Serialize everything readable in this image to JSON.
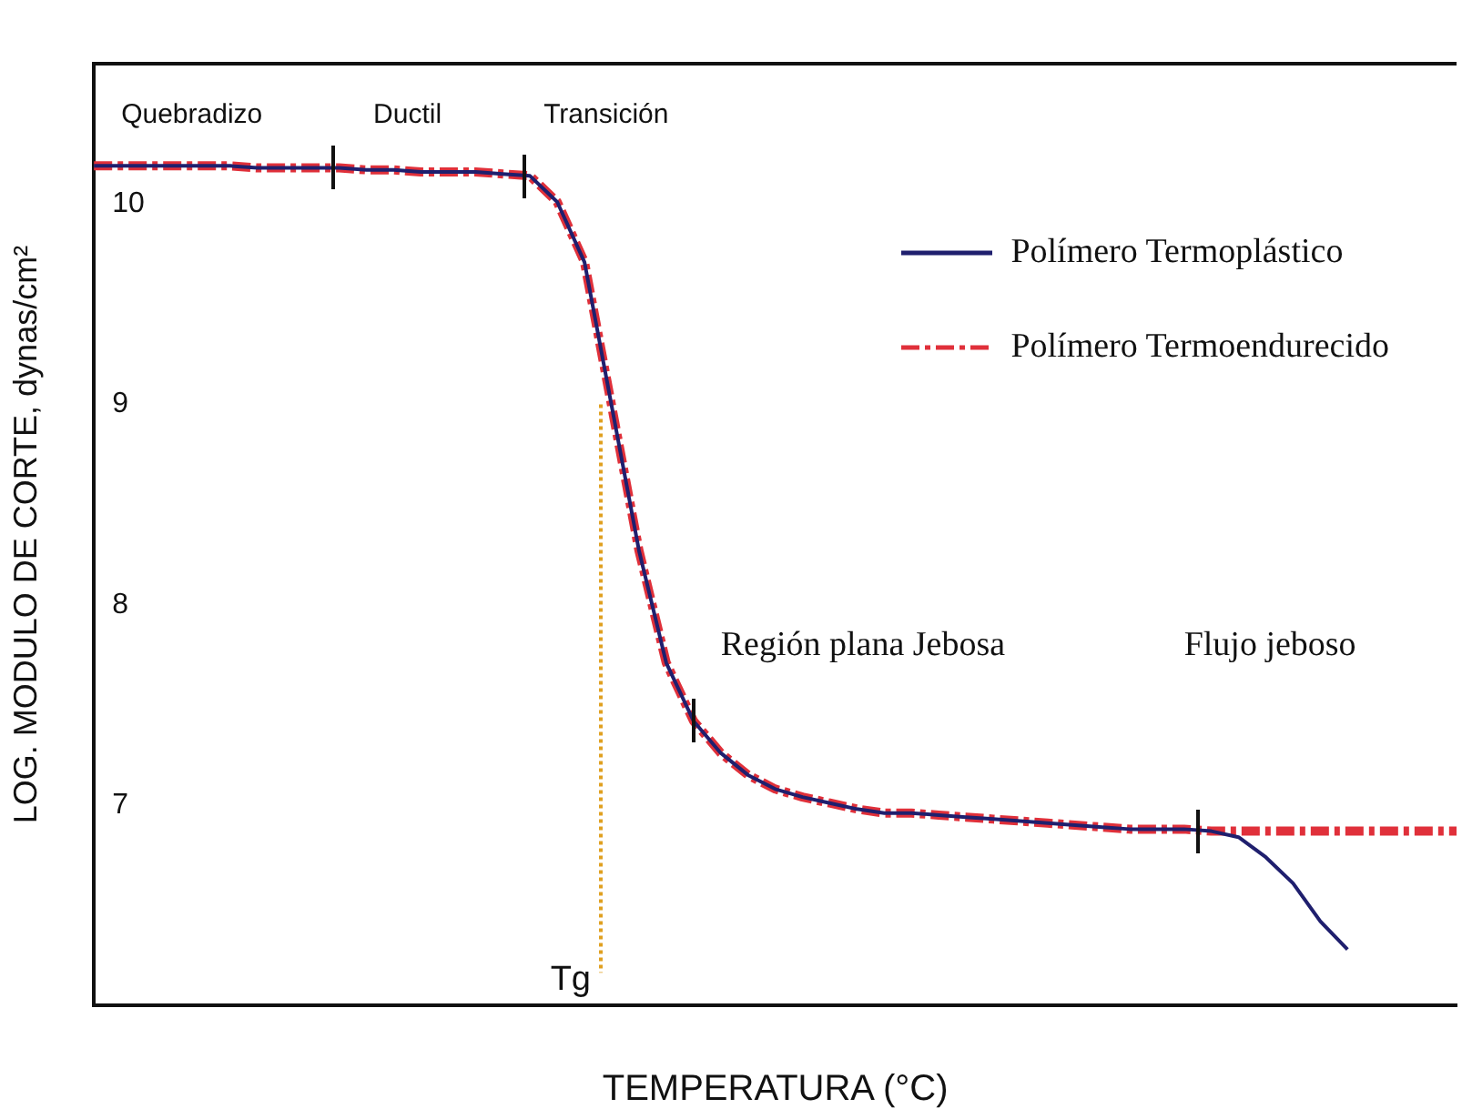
{
  "chart_data": {
    "type": "line",
    "xlabel": "TEMPERATURA (°C)",
    "ylabel": "LOG. MODULO DE CORTE, dynas/cm²",
    "categories": [
      null,
      null,
      null,
      null,
      null,
      null,
      null,
      null,
      null,
      null,
      null,
      null,
      null,
      null,
      null,
      null,
      null,
      null,
      null,
      null,
      null,
      null,
      null,
      null,
      null,
      null,
      null,
      null,
      null,
      null,
      null,
      null,
      null,
      null,
      null,
      null,
      null,
      null,
      null,
      null,
      null,
      null,
      null,
      null,
      null,
      null,
      null,
      null,
      null,
      null,
      null
    ],
    "series": [
      {
        "name": "Polímero Termoendurecido",
        "color": "#e0303a",
        "line_style": "dashed",
        "values": [
          10.19,
          10.19,
          10.19,
          10.19,
          10.19,
          10.19,
          10.18,
          10.18,
          10.18,
          10.18,
          10.17,
          10.17,
          10.16,
          10.16,
          10.16,
          10.15,
          10.14,
          10.01,
          9.71,
          8.99,
          8.27,
          7.71,
          7.42,
          7.26,
          7.15,
          7.08,
          7.04,
          7.01,
          6.98,
          6.96,
          6.96,
          6.95,
          6.94,
          6.93,
          6.92,
          6.91,
          6.9,
          6.89,
          6.88,
          6.88,
          6.88,
          6.87,
          6.87,
          6.87,
          6.87,
          6.87,
          6.87,
          6.87,
          6.87,
          6.87,
          6.87
        ]
      },
      {
        "name": "Polímero Termoplástico",
        "color": "#1f1f6e",
        "line_style": "solid",
        "values": [
          10.19,
          10.19,
          10.19,
          10.19,
          10.19,
          10.19,
          10.18,
          10.18,
          10.18,
          10.18,
          10.17,
          10.17,
          10.16,
          10.16,
          10.16,
          10.15,
          10.14,
          10.01,
          9.71,
          8.99,
          8.27,
          7.71,
          7.42,
          7.26,
          7.15,
          7.08,
          7.04,
          7.01,
          6.98,
          6.96,
          6.96,
          6.95,
          6.94,
          6.93,
          6.92,
          6.91,
          6.9,
          6.89,
          6.88,
          6.88,
          6.88,
          6.87,
          6.84,
          6.74,
          6.61,
          6.42,
          6.28,
          null,
          null,
          null,
          null
        ]
      }
    ],
    "ylim": [
      6,
      10.7
    ],
    "yticks": [
      7,
      8,
      9,
      10
    ],
    "grid": false,
    "legend": "top right",
    "marker": "none",
    "annotations": [
      "Quebradizo",
      "Ductil",
      "Transición",
      "Región plana Jebosa",
      "Flujo jeboso",
      "Tg"
    ]
  }
}
